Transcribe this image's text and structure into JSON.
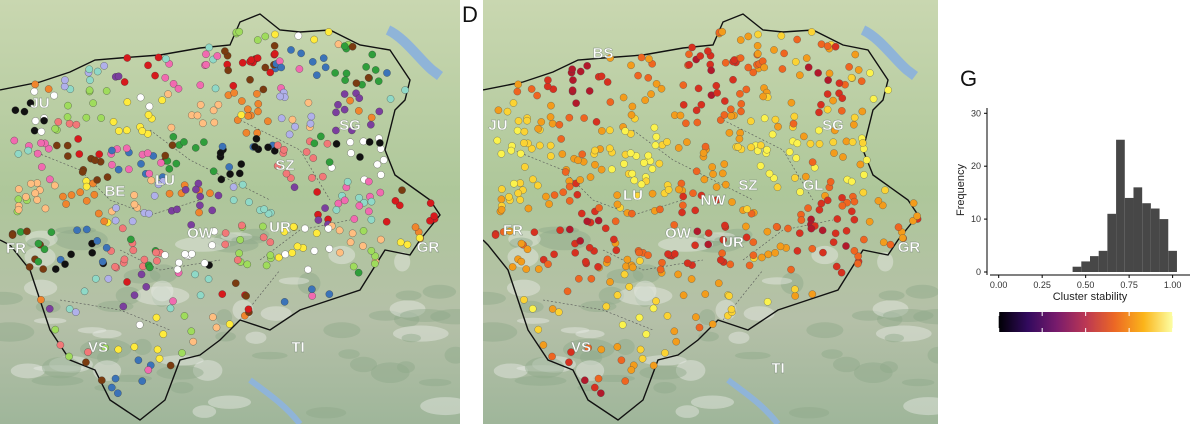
{
  "panels": {
    "left_map": {
      "region_labels": [
        "JU",
        "LU",
        "SZ",
        "OW",
        "UR",
        "FR",
        "GR",
        "VS",
        "TI",
        "BE",
        "SG"
      ],
      "cluster_colors": [
        "#2f9e3b",
        "#7a3b10",
        "#d7191c",
        "#7b3f9e",
        "#f0852d",
        "#ffeb3b",
        "#ffffff",
        "#111111",
        "#3b73b8",
        "#f16ab0",
        "#8fd9c7",
        "#b0b0ea",
        "#ffbe80",
        "#9fdc5c",
        "#f27878"
      ]
    },
    "right_map": {
      "letter": "D",
      "region_labels": [
        "BS",
        "JU",
        "FR",
        "LU",
        "NW",
        "SZ",
        "GL",
        "SG",
        "GR",
        "OW",
        "UR",
        "VS",
        "TI"
      ],
      "stability_colors": [
        "#b2182b",
        "#d7301f",
        "#ef6520",
        "#f39c1b",
        "#fbd333",
        "#fbf34d"
      ]
    },
    "histogram": {
      "letter": "G",
      "colorbar_stops": [
        "#000004",
        "#320a5e",
        "#781b6c",
        "#bb3754",
        "#ec6824",
        "#fbb41a",
        "#fcffa4"
      ]
    }
  },
  "chart_data": {
    "type": "bar",
    "xlabel": "Cluster stability",
    "ylabel": "Frequency",
    "xlim": [
      -0.05,
      1.1
    ],
    "ylim": [
      0,
      31
    ],
    "x_ticks": [
      "0.00",
      "0.25",
      "0.50",
      "0.75",
      "1.00"
    ],
    "x_tick_values": [
      0.0,
      0.25,
      0.5,
      0.75,
      1.0
    ],
    "y_ticks": [
      "0",
      "10",
      "20",
      "30"
    ],
    "y_tick_values": [
      0,
      10,
      20,
      30
    ],
    "bin_width": 0.05,
    "bin_starts": [
      0.425,
      0.475,
      0.525,
      0.575,
      0.625,
      0.675,
      0.725,
      0.775,
      0.825,
      0.875,
      0.925,
      0.975
    ],
    "values": [
      1,
      2,
      3,
      4,
      11,
      25,
      14,
      16,
      13,
      12,
      10,
      4
    ],
    "colorbar_ticks": [
      0.0,
      0.25,
      0.5,
      0.75,
      1.0
    ]
  }
}
